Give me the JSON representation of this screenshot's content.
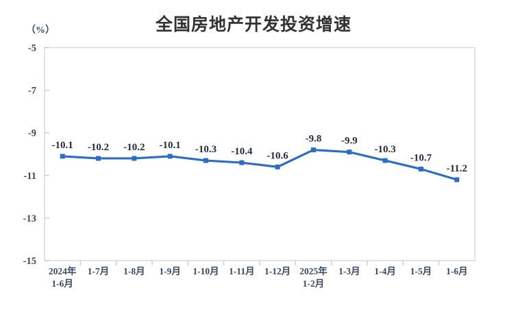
{
  "title": "全国房地产开发投资增速",
  "unit_label": "（%）",
  "colors": {
    "line": "#2E6DC5",
    "marker": "#2E6DC5",
    "plot_border": "#D9D9D9",
    "tick_mark": "#C9C9C9",
    "title_text": "#333333",
    "axis_text": "#3A4963",
    "data_label_text": "#222B3F",
    "background": "#FFFFFF"
  },
  "chart_data": {
    "type": "line",
    "title": "全国房地产开发投资增速",
    "ylabel": "（%）",
    "xlabel": "",
    "categories": [
      "2024年\n1-6月",
      "1-7月",
      "1-8月",
      "1-9月",
      "1-10月",
      "1-11月",
      "1-12月",
      "2025年\n1-2月",
      "1-3月",
      "1-4月",
      "1-5月",
      "1-6月"
    ],
    "values": [
      -10.1,
      -10.2,
      -10.2,
      -10.1,
      -10.3,
      -10.4,
      -10.6,
      -9.8,
      -9.9,
      -10.3,
      -10.7,
      -11.2
    ],
    "data_labels": [
      "-10.1",
      "-10.2",
      "-10.2",
      "-10.1",
      "-10.3",
      "-10.4",
      "-10.6",
      "-9.8",
      "-9.9",
      "-10.3",
      "-10.7",
      "-11.2"
    ],
    "ytick_labels": [
      "-5",
      "-7",
      "-9",
      "-11",
      "-13",
      "-15"
    ],
    "yticks": [
      -5,
      -7,
      -9,
      -11,
      -13,
      -15
    ],
    "ylim": [
      -15,
      -5
    ],
    "grid": false,
    "legend_position": "none",
    "marker_shape": "square"
  }
}
